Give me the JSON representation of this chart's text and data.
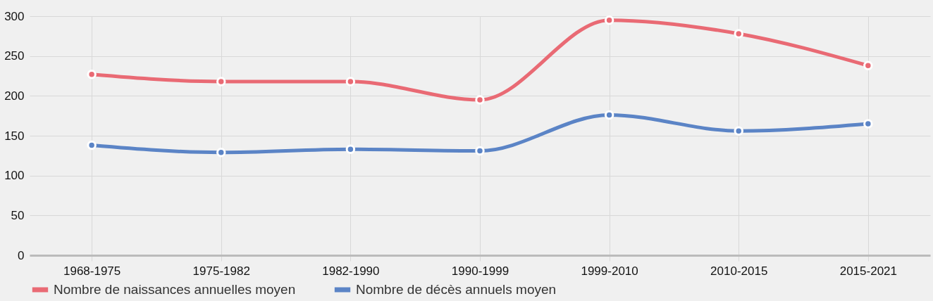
{
  "chart_data": {
    "type": "line",
    "categories": [
      "1968-1975",
      "1975-1982",
      "1982-1990",
      "1990-1999",
      "1999-2010",
      "2010-2015",
      "2015-2021"
    ],
    "series": [
      {
        "name": "Nombre de naissances annuelles moyen",
        "color": "#e96a74",
        "values": [
          227,
          218,
          218,
          195,
          295,
          278,
          238
        ]
      },
      {
        "name": "Nombre de décès annuels moyen",
        "color": "#5b84c6",
        "values": [
          138,
          129,
          133,
          131,
          176,
          156,
          165
        ]
      }
    ],
    "ylim": [
      0,
      300
    ],
    "yticks": [
      0,
      50,
      100,
      150,
      200,
      250,
      300
    ],
    "grid": true,
    "legend": "bottom",
    "marker": "circle",
    "line_style": "solid"
  }
}
